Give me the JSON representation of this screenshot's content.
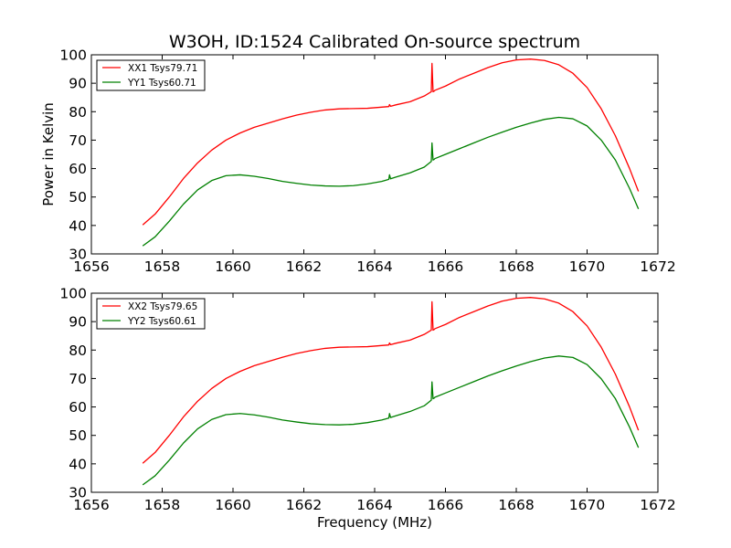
{
  "figure": {
    "title": "W3OH, ID:1524 Calibrated On-source spectrum",
    "ylabel": "Power in Kelvin",
    "xlabel": "Frequency (MHz)"
  },
  "chart_data": [
    {
      "type": "line",
      "title": "W3OH, ID:1524 Calibrated On-source spectrum",
      "xlabel": "",
      "ylabel": "Power in Kelvin",
      "xlim": [
        1656,
        1672
      ],
      "ylim": [
        30,
        100
      ],
      "xticks": [
        1656,
        1658,
        1660,
        1662,
        1664,
        1666,
        1668,
        1670,
        1672
      ],
      "yticks": [
        30,
        40,
        50,
        60,
        70,
        80,
        90,
        100
      ],
      "grid": false,
      "legend": "top-left",
      "series": [
        {
          "name": "XX1 Tsys79.71",
          "color": "#ff0000",
          "x": [
            1657.45,
            1657.8,
            1658.2,
            1658.6,
            1659.0,
            1659.4,
            1659.8,
            1660.2,
            1660.6,
            1661.0,
            1661.4,
            1661.8,
            1662.2,
            1662.6,
            1663.0,
            1663.4,
            1663.8,
            1664.2,
            1664.4,
            1664.42,
            1664.45,
            1664.6,
            1665.0,
            1665.4,
            1665.6,
            1665.62,
            1665.65,
            1665.68,
            1665.7,
            1666.0,
            1666.4,
            1666.8,
            1667.2,
            1667.6,
            1668.0,
            1668.4,
            1668.8,
            1669.2,
            1669.6,
            1670.0,
            1670.4,
            1670.8,
            1671.2,
            1671.45
          ],
          "y": [
            40.2,
            44.0,
            50.0,
            56.5,
            62.0,
            66.5,
            70.0,
            72.5,
            74.5,
            76.0,
            77.5,
            78.8,
            79.8,
            80.6,
            81.0,
            81.1,
            81.2,
            81.6,
            81.8,
            82.5,
            81.9,
            82.4,
            83.5,
            85.5,
            87.0,
            97.0,
            87.0,
            87.2,
            87.5,
            89.0,
            91.5,
            93.5,
            95.5,
            97.2,
            98.2,
            98.5,
            98.0,
            96.5,
            93.5,
            88.5,
            81.0,
            71.5,
            60.0,
            52.0
          ]
        },
        {
          "name": "YY1 Tsys60.71",
          "color": "#008000",
          "x": [
            1657.45,
            1657.8,
            1658.2,
            1658.6,
            1659.0,
            1659.4,
            1659.8,
            1660.2,
            1660.6,
            1661.0,
            1661.4,
            1661.8,
            1662.2,
            1662.6,
            1663.0,
            1663.4,
            1663.8,
            1664.2,
            1664.4,
            1664.42,
            1664.45,
            1664.6,
            1665.0,
            1665.4,
            1665.6,
            1665.62,
            1665.65,
            1665.68,
            1665.7,
            1666.0,
            1666.4,
            1666.8,
            1667.2,
            1667.6,
            1668.0,
            1668.4,
            1668.8,
            1669.2,
            1669.6,
            1670.0,
            1670.4,
            1670.8,
            1671.2,
            1671.45
          ],
          "y": [
            32.8,
            36.0,
            41.5,
            47.5,
            52.5,
            55.8,
            57.5,
            57.8,
            57.3,
            56.5,
            55.5,
            54.8,
            54.2,
            53.9,
            53.8,
            54.0,
            54.6,
            55.5,
            56.2,
            57.8,
            56.4,
            57.0,
            58.5,
            60.5,
            62.5,
            69.0,
            63.0,
            63.2,
            63.5,
            65.0,
            67.0,
            69.0,
            71.0,
            72.8,
            74.5,
            76.0,
            77.3,
            78.0,
            77.5,
            75.0,
            70.0,
            63.0,
            53.0,
            45.8
          ]
        }
      ]
    },
    {
      "type": "line",
      "title": "",
      "xlabel": "Frequency (MHz)",
      "ylabel": "",
      "xlim": [
        1656,
        1672
      ],
      "ylim": [
        30,
        100
      ],
      "xticks": [
        1656,
        1658,
        1660,
        1662,
        1664,
        1666,
        1668,
        1670,
        1672
      ],
      "yticks": [
        30,
        40,
        50,
        60,
        70,
        80,
        90,
        100
      ],
      "grid": false,
      "legend": "top-left",
      "series": [
        {
          "name": "XX2 Tsys79.65",
          "color": "#ff0000",
          "x": [
            1657.45,
            1657.8,
            1658.2,
            1658.6,
            1659.0,
            1659.4,
            1659.8,
            1660.2,
            1660.6,
            1661.0,
            1661.4,
            1661.8,
            1662.2,
            1662.6,
            1663.0,
            1663.4,
            1663.8,
            1664.2,
            1664.4,
            1664.42,
            1664.45,
            1664.6,
            1665.0,
            1665.4,
            1665.6,
            1665.62,
            1665.65,
            1665.68,
            1665.7,
            1666.0,
            1666.4,
            1666.8,
            1667.2,
            1667.6,
            1668.0,
            1668.4,
            1668.8,
            1669.2,
            1669.6,
            1670.0,
            1670.4,
            1670.8,
            1671.2,
            1671.45
          ],
          "y": [
            40.2,
            44.0,
            50.0,
            56.5,
            62.0,
            66.5,
            70.0,
            72.5,
            74.5,
            76.0,
            77.5,
            78.8,
            79.8,
            80.6,
            81.0,
            81.1,
            81.2,
            81.6,
            81.8,
            82.5,
            81.9,
            82.4,
            83.5,
            85.5,
            87.0,
            97.0,
            87.0,
            87.2,
            87.5,
            89.0,
            91.5,
            93.5,
            95.5,
            97.2,
            98.2,
            98.5,
            98.0,
            96.5,
            93.5,
            88.5,
            81.0,
            71.5,
            60.0,
            51.8
          ]
        },
        {
          "name": "YY2 Tsys60.61",
          "color": "#008000",
          "x": [
            1657.45,
            1657.8,
            1658.2,
            1658.6,
            1659.0,
            1659.4,
            1659.8,
            1660.2,
            1660.6,
            1661.0,
            1661.4,
            1661.8,
            1662.2,
            1662.6,
            1663.0,
            1663.4,
            1663.8,
            1664.2,
            1664.4,
            1664.42,
            1664.45,
            1664.6,
            1665.0,
            1665.4,
            1665.6,
            1665.62,
            1665.65,
            1665.68,
            1665.7,
            1666.0,
            1666.4,
            1666.8,
            1667.2,
            1667.6,
            1668.0,
            1668.4,
            1668.8,
            1669.2,
            1669.6,
            1670.0,
            1670.4,
            1670.8,
            1671.2,
            1671.45
          ],
          "y": [
            32.6,
            35.8,
            41.3,
            47.3,
            52.3,
            55.6,
            57.3,
            57.7,
            57.2,
            56.4,
            55.4,
            54.7,
            54.1,
            53.8,
            53.7,
            53.9,
            54.5,
            55.4,
            56.1,
            57.7,
            56.3,
            56.9,
            58.4,
            60.4,
            62.4,
            68.8,
            62.9,
            63.1,
            63.4,
            64.9,
            66.9,
            68.9,
            70.9,
            72.7,
            74.4,
            75.9,
            77.2,
            77.9,
            77.4,
            74.9,
            69.9,
            62.9,
            52.9,
            45.7
          ]
        }
      ]
    }
  ]
}
